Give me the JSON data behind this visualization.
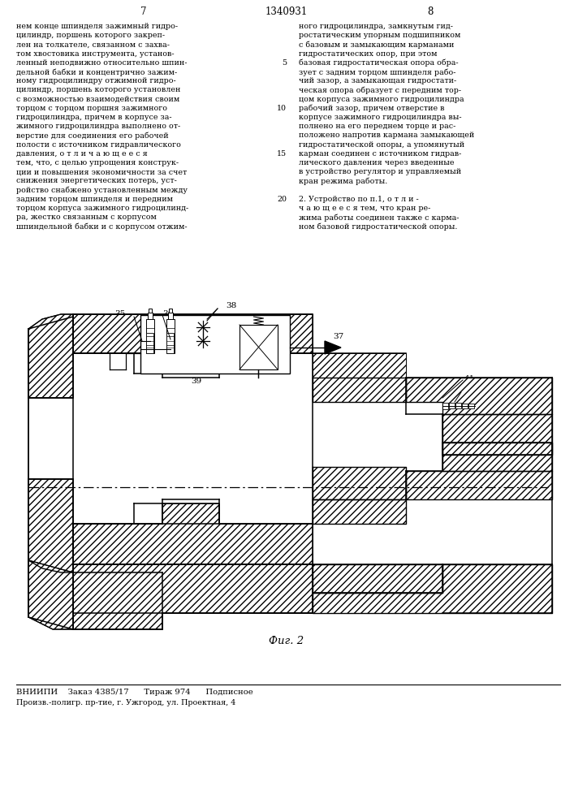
{
  "page_num_left": "7",
  "page_num_center": "1340931",
  "page_num_right": "8",
  "col_left_text": [
    "нем конце шпинделя зажимный гидро-",
    "цилиндр, поршень которого закреп-",
    "лен на толкателе, связанном с захва-",
    "том хвостовика инструмента, установ-",
    "ленный неподвижно относительно шпин-",
    "дельной бабки и концентрично зажим-",
    "ному гидроцилиндру отжимной гидро-",
    "цилиндр, поршень которого установлен",
    "с возможностью взаимодействия своим",
    "торцом с торцом поршня зажимного",
    "гидроцилиндра, причем в корпусе за-",
    "жимного гидроцилиндра выполнено от-",
    "верстие для соединения его рабочей",
    "полости с источником гидравлического",
    "давления, о т л и ч а ю щ е е с я",
    "тем, что, с целью упрощения конструк-",
    "ции и повышения экономичности за счет",
    "снижения энергетических потерь, уст-",
    "ройство снабжено установленным между",
    "задним торцом шпинделя и передним",
    "торцом корпуса зажимного гидроцилинд-",
    "ра, жестко связанным с корпусом",
    "шпиндельной бабки и с корпусом отжим-"
  ],
  "col_right_text": [
    "ного гидроцилиндра, замкнутым гид-",
    "ростатическим упорным подшипником",
    "с базовым и замыкающим карманами",
    "гидростатических опор, при этом",
    "базовая гидростатическая опора обра-",
    "зует с задним торцом шпинделя рабо-",
    "чий зазор, а замыкающая гидростати-",
    "ческая опора образует с передним тор-",
    "цом корпуса зажимного гидроцилиндра",
    "рабочий зазор, причем отверстие в",
    "корпусе зажимного гидроцилиндра вы-",
    "полнено на его переднем торце и рас-",
    "положено напротив кармана замыкающей",
    "гидростатической опоры, а упомянутый",
    "карман соединен с источником гидрав-",
    "лического давления через введенные",
    "в устройство регулятор и управляемый",
    "кран режима работы.",
    "",
    "2. Устройство по п.1, о т л и -",
    "ч а ю щ е е с я тем, что кран ре-",
    "жима работы соединен также с карма-",
    "ном базовой гидростатической опоры."
  ],
  "fig_label": "Фиг. 2",
  "footer_line1": "ВНИИПИ    Заказ 4385/17      Тираж 974      Подписное",
  "footer_line2": "Произв.-полигр. пр-тие, г. Ужгород, ул. Проектная, 4",
  "bg_color": "#ffffff",
  "text_color": "#000000"
}
